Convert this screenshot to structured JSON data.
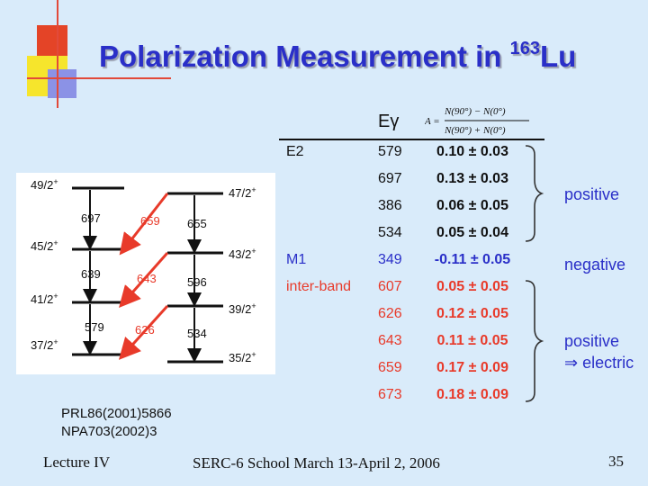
{
  "slide": {
    "title_main": "Polarization Measurement in ",
    "title_isotope_mass": "163",
    "title_element": "Lu"
  },
  "level_scheme": {
    "left_band_spins": [
      "49/2",
      "45/2",
      "41/2",
      "37/2"
    ],
    "right_band_spins": [
      "47/2",
      "43/2",
      "39/2",
      "35/2"
    ],
    "parity": "+",
    "left_transitions": [
      "697",
      "639",
      "579"
    ],
    "right_transitions": [
      "655",
      "596",
      "534"
    ],
    "interband_transitions": [
      "659",
      "643",
      "626"
    ],
    "colors": {
      "interband": "#e83a2a",
      "text": "#111111"
    }
  },
  "table": {
    "energy_header": "Eγ",
    "asymmetry_formula": {
      "lhs": "A =",
      "numerator": "N(90°) − N(0°)",
      "denominator": "N(90°) + N(0°)"
    },
    "rows": [
      {
        "type": "E2",
        "energy": "579",
        "asymmetry": "0.10 ± 0.03",
        "color": "black"
      },
      {
        "type": "",
        "energy": "697",
        "asymmetry": "0.13 ± 0.03",
        "color": "black"
      },
      {
        "type": "",
        "energy": "386",
        "asymmetry": "0.06 ± 0.05",
        "color": "black"
      },
      {
        "type": "",
        "energy": "534",
        "asymmetry": "0.05 ± 0.04",
        "color": "black"
      },
      {
        "type": "M1",
        "energy": "349",
        "asymmetry": "-0.11 ± 0.05",
        "color": "blue"
      },
      {
        "type": "inter-band",
        "energy": "607",
        "asymmetry": "0.05 ± 0.05",
        "color": "red"
      },
      {
        "type": "",
        "energy": "626",
        "asymmetry": "0.12 ± 0.05",
        "color": "red"
      },
      {
        "type": "",
        "energy": "643",
        "asymmetry": "0.11 ± 0.05",
        "color": "red"
      },
      {
        "type": "",
        "energy": "659",
        "asymmetry": "0.17 ± 0.09",
        "color": "red"
      },
      {
        "type": "",
        "energy": "673",
        "asymmetry": "0.18 ± 0.09",
        "color": "red"
      }
    ],
    "group_labels": {
      "e2_sign": "positive",
      "m1_sign": "negative",
      "interband_sign": "positive",
      "interband_conclusion": "⇒ electric"
    }
  },
  "references": [
    "PRL86(2001)5866",
    "NPA703(2002)3"
  ],
  "footer": {
    "left": "Lecture IV",
    "center": "SERC-6 School March 13-April 2, 2006",
    "page": "35"
  }
}
